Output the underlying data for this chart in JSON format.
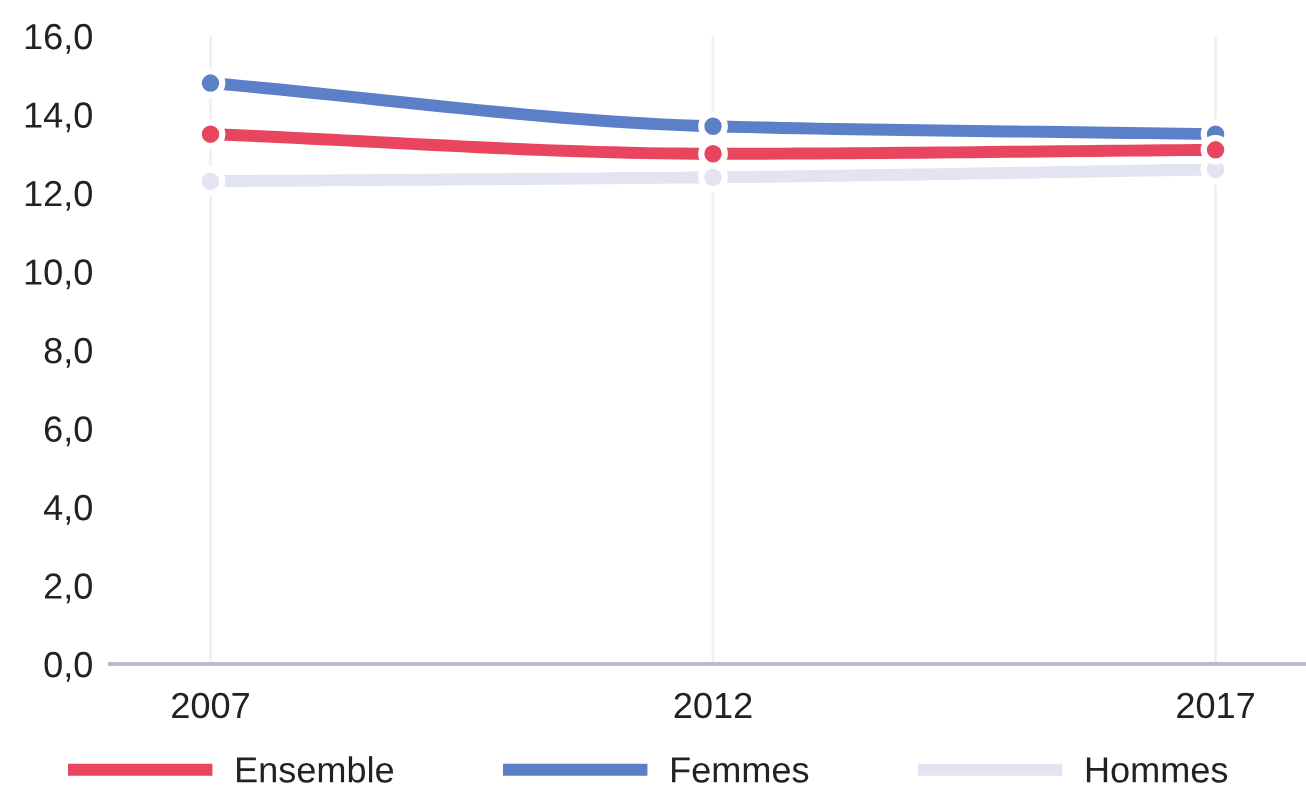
{
  "chart_data": {
    "type": "line",
    "categories": [
      "2007",
      "2012",
      "2017"
    ],
    "series": [
      {
        "name": "Ensemble",
        "color": "#e8455f",
        "values": [
          13.5,
          13.0,
          13.1
        ]
      },
      {
        "name": "Femmes",
        "color": "#5b80c8",
        "values": [
          14.8,
          13.7,
          13.5
        ]
      },
      {
        "name": "Hommes",
        "color": "#e2e5f1",
        "values": [
          12.3,
          12.4,
          12.6
        ]
      }
    ],
    "ylim": [
      0,
      16
    ],
    "yticks": [
      {
        "value": 0,
        "label": "0,0"
      },
      {
        "value": 2,
        "label": "2,0"
      },
      {
        "value": 4,
        "label": "4,0"
      },
      {
        "value": 6,
        "label": "6,0"
      },
      {
        "value": 8,
        "label": "8,0"
      },
      {
        "value": 10,
        "label": "10,0"
      },
      {
        "value": 12,
        "label": "12,0"
      },
      {
        "value": 14,
        "label": "14,0"
      },
      {
        "value": 16,
        "label": "16,0"
      }
    ],
    "grid": "x",
    "legend": "bottom",
    "marker": "circle",
    "line_style": "solid"
  }
}
